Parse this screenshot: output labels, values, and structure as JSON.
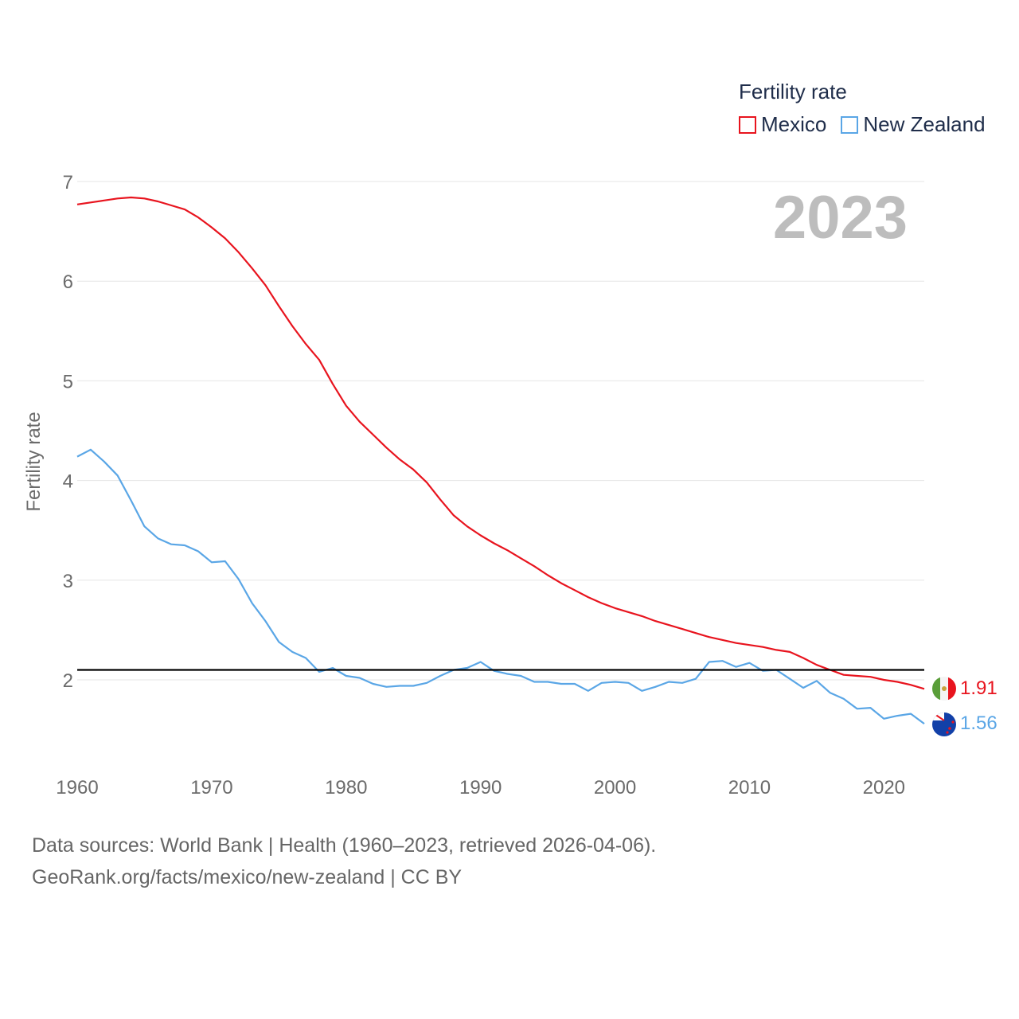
{
  "legend": {
    "title": "Fertility rate",
    "items": [
      {
        "name": "Mexico",
        "color": "#e8141e"
      },
      {
        "name": "New Zealand",
        "color": "#5aa6e6"
      }
    ]
  },
  "year_label": "2023",
  "source": {
    "line1": "Data sources: World Bank | Health (1960–2023, retrieved 2026-04-06).",
    "line2": "GeoRank.org/facts/mexico/new-zealand | CC BY"
  },
  "chart_data": {
    "type": "line",
    "title": "Fertility rate",
    "xlabel": "",
    "ylabel": "Fertility rate",
    "xlim": [
      1960,
      2023
    ],
    "ylim": [
      1.2,
      7.1
    ],
    "xticks": [
      1960,
      1970,
      1980,
      1990,
      2000,
      2010,
      2020
    ],
    "yticks": [
      2,
      3,
      4,
      5,
      6,
      7
    ],
    "reference_line": {
      "y": 2.1,
      "color": "#000000"
    },
    "x": [
      1960,
      1961,
      1962,
      1963,
      1964,
      1965,
      1966,
      1967,
      1968,
      1969,
      1970,
      1971,
      1972,
      1973,
      1974,
      1975,
      1976,
      1977,
      1978,
      1979,
      1980,
      1981,
      1982,
      1983,
      1984,
      1985,
      1986,
      1987,
      1988,
      1989,
      1990,
      1991,
      1992,
      1993,
      1994,
      1995,
      1996,
      1997,
      1998,
      1999,
      2000,
      2001,
      2002,
      2003,
      2004,
      2005,
      2006,
      2007,
      2008,
      2009,
      2010,
      2011,
      2012,
      2013,
      2014,
      2015,
      2016,
      2017,
      2018,
      2019,
      2020,
      2021,
      2022,
      2023
    ],
    "series": [
      {
        "name": "Mexico",
        "color": "#e8141e",
        "end_label": "1.91",
        "values": [
          6.77,
          6.79,
          6.81,
          6.83,
          6.84,
          6.83,
          6.8,
          6.76,
          6.72,
          6.64,
          6.54,
          6.43,
          6.29,
          6.13,
          5.96,
          5.75,
          5.55,
          5.37,
          5.21,
          4.97,
          4.75,
          4.59,
          4.46,
          4.33,
          4.21,
          4.11,
          3.98,
          3.81,
          3.65,
          3.54,
          3.45,
          3.37,
          3.3,
          3.22,
          3.14,
          3.05,
          2.97,
          2.9,
          2.83,
          2.77,
          2.72,
          2.68,
          2.64,
          2.59,
          2.55,
          2.51,
          2.47,
          2.43,
          2.4,
          2.37,
          2.35,
          2.33,
          2.3,
          2.28,
          2.22,
          2.15,
          2.1,
          2.05,
          2.04,
          2.03,
          2.0,
          1.98,
          1.95,
          1.91
        ]
      },
      {
        "name": "New Zealand",
        "color": "#5aa6e6",
        "end_label": "1.56",
        "values": [
          4.24,
          4.31,
          4.19,
          4.05,
          3.8,
          3.54,
          3.42,
          3.36,
          3.35,
          3.29,
          3.18,
          3.19,
          3.01,
          2.77,
          2.59,
          2.38,
          2.28,
          2.22,
          2.08,
          2.12,
          2.04,
          2.02,
          1.96,
          1.93,
          1.94,
          1.94,
          1.97,
          2.04,
          2.1,
          2.12,
          2.18,
          2.09,
          2.06,
          2.04,
          1.98,
          1.98,
          1.96,
          1.96,
          1.89,
          1.97,
          1.98,
          1.97,
          1.89,
          1.93,
          1.98,
          1.97,
          2.01,
          2.18,
          2.19,
          2.13,
          2.17,
          2.09,
          2.1,
          2.01,
          1.92,
          1.99,
          1.87,
          1.81,
          1.71,
          1.72,
          1.61,
          1.64,
          1.66,
          1.56
        ]
      }
    ]
  }
}
